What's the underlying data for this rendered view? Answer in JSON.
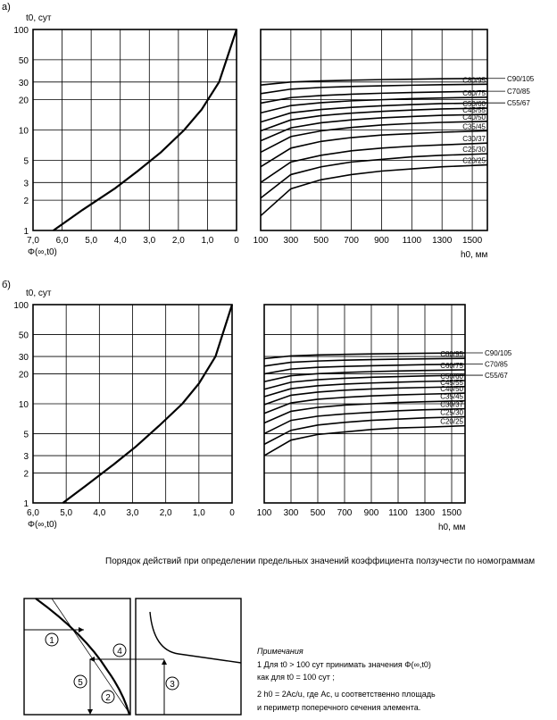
{
  "figure": {
    "panel_a_label": "а)",
    "panel_b_label": "б)"
  },
  "chart_data": [
    {
      "id": "a_left",
      "type": "line",
      "panel": "а)",
      "ylabel": "t0, сут",
      "xlabel": "Φ(∞,t0)",
      "y_scale": "log",
      "y_ticks": [
        "1",
        "2",
        "3",
        "5",
        "10",
        "20",
        "30",
        "50",
        "100"
      ],
      "x_ticks": [
        "7,0",
        "6,0",
        "5,0",
        "4,0",
        "3,0",
        "2,0",
        "1,0",
        "0"
      ],
      "x_range": [
        7.0,
        0
      ],
      "y_range": [
        1,
        100
      ],
      "grid": true,
      "series": [
        {
          "x": [
            6.3,
            5.3,
            4.2,
            3.4,
            2.6,
            1.8,
            1.2,
            0.6,
            0
          ],
          "y": [
            1,
            1.6,
            2.6,
            3.9,
            6.0,
            10,
            16,
            30,
            100
          ]
        }
      ]
    },
    {
      "id": "a_right",
      "type": "line",
      "panel": "а)",
      "xlabel": "h0, мм",
      "y_scale": "log",
      "x_ticks": [
        "100",
        "300",
        "500",
        "700",
        "900",
        "1100",
        "1300",
        "1500"
      ],
      "x_range": [
        100,
        1600
      ],
      "y_range": [
        1,
        100
      ],
      "grid": true,
      "x": [
        100,
        300,
        500,
        700,
        900,
        1100,
        1300,
        1600
      ],
      "series": [
        {
          "name": "C20/25",
          "y": [
            1.4,
            2.6,
            3.2,
            3.6,
            3.9,
            4.1,
            4.3,
            4.5
          ]
        },
        {
          "name": "C25/30",
          "y": [
            2.1,
            3.6,
            4.3,
            4.8,
            5.1,
            5.4,
            5.6,
            5.8
          ]
        },
        {
          "name": "C30/37",
          "y": [
            3.0,
            4.8,
            5.6,
            6.2,
            6.6,
            6.9,
            7.1,
            7.4
          ]
        },
        {
          "name": "C35/45",
          "y": [
            4.3,
            6.6,
            7.7,
            8.4,
            8.9,
            9.2,
            9.5,
            9.8
          ]
        },
        {
          "name": "C40/50",
          "y": [
            6.0,
            8.6,
            9.8,
            10.6,
            11.2,
            11.6,
            11.9,
            12.2
          ]
        },
        {
          "name": "C45/55",
          "y": [
            7.8,
            10.5,
            11.8,
            12.6,
            13.2,
            13.6,
            14,
            14.3
          ]
        },
        {
          "name": "C50/60",
          "y": [
            9.8,
            12.6,
            13.9,
            14.7,
            15.3,
            15.8,
            16.2,
            16.5
          ]
        },
        {
          "name": "C55/67",
          "y": [
            12,
            14.8,
            16,
            16.8,
            17.4,
            17.9,
            18.3,
            18.6
          ]
        },
        {
          "name": "C60/75",
          "y": [
            14.8,
            17.5,
            18.7,
            19.5,
            20,
            20.5,
            20.8,
            21.2
          ]
        },
        {
          "name": "C70/85",
          "y": [
            18.5,
            21,
            22,
            22.7,
            23.2,
            23.6,
            23.9,
            24.3
          ]
        },
        {
          "name": "C80/95",
          "y": [
            23,
            25.5,
            26.5,
            27.1,
            27.5,
            27.9,
            28.2,
            28.5
          ]
        },
        {
          "name": "C90/105",
          "y": [
            28,
            30,
            30.8,
            31.3,
            31.7,
            32,
            32.3,
            32.6
          ]
        }
      ]
    },
    {
      "id": "b_left",
      "type": "line",
      "panel": "б)",
      "ylabel": "t0, сут",
      "xlabel": "Φ(∞,t0)",
      "y_scale": "log",
      "y_ticks": [
        "1",
        "2",
        "3",
        "5",
        "10",
        "20",
        "30",
        "50",
        "100"
      ],
      "x_ticks": [
        "6,0",
        "5,0",
        "4,0",
        "3,0",
        "2,0",
        "1,0",
        "0"
      ],
      "x_range": [
        6.0,
        0
      ],
      "y_range": [
        1,
        100
      ],
      "grid": true,
      "series": [
        {
          "x": [
            5.1,
            4.4,
            3.6,
            2.9,
            2.2,
            1.5,
            1.0,
            0.5,
            0
          ],
          "y": [
            1,
            1.5,
            2.4,
            3.7,
            6.0,
            10,
            16,
            30,
            100
          ]
        }
      ]
    },
    {
      "id": "b_right",
      "type": "line",
      "panel": "б)",
      "xlabel": "h0, мм",
      "y_scale": "log",
      "x_ticks": [
        "100",
        "300",
        "500",
        "700",
        "900",
        "1100",
        "1300",
        "1500"
      ],
      "x_range": [
        100,
        1600
      ],
      "y_range": [
        1,
        100
      ],
      "grid": true,
      "x": [
        100,
        300,
        500,
        700,
        900,
        1100,
        1300,
        1600
      ],
      "series": [
        {
          "name": "C20/25",
          "y": [
            3.0,
            4.3,
            4.9,
            5.2,
            5.5,
            5.7,
            5.8,
            6.0
          ]
        },
        {
          "name": "C25/30",
          "y": [
            3.9,
            5.4,
            6.1,
            6.5,
            6.8,
            7.0,
            7.2,
            7.4
          ]
        },
        {
          "name": "C30/37",
          "y": [
            5.0,
            6.8,
            7.5,
            7.9,
            8.2,
            8.5,
            8.7,
            8.9
          ]
        },
        {
          "name": "C35/45",
          "y": [
            6.4,
            8.4,
            9.2,
            9.7,
            10,
            10.3,
            10.5,
            10.7
          ]
        },
        {
          "name": "C40/50",
          "y": [
            8.0,
            10.2,
            11.1,
            11.6,
            12,
            12.3,
            12.5,
            12.8
          ]
        },
        {
          "name": "C45/55",
          "y": [
            9.8,
            12.2,
            13.1,
            13.7,
            14.1,
            14.4,
            14.6,
            14.9
          ]
        },
        {
          "name": "C50/60",
          "y": [
            11.8,
            14.2,
            15.2,
            15.8,
            16.2,
            16.5,
            16.8,
            17.1
          ]
        },
        {
          "name": "C55/67",
          "y": [
            14,
            16.5,
            17.5,
            18.1,
            18.5,
            18.8,
            19.1,
            19.4
          ]
        },
        {
          "name": "C60/75",
          "y": [
            16.7,
            19.2,
            20.1,
            20.7,
            21.1,
            21.4,
            21.7,
            22
          ]
        },
        {
          "name": "C70/85",
          "y": [
            20,
            22.4,
            23.3,
            23.8,
            24.2,
            24.5,
            24.8,
            25.1
          ]
        },
        {
          "name": "C80/95",
          "y": [
            24,
            26.2,
            27,
            27.5,
            27.9,
            28.2,
            28.4,
            28.7
          ]
        },
        {
          "name": "C90/105",
          "y": [
            28.5,
            30.4,
            31.1,
            31.5,
            31.8,
            32.1,
            32.3,
            32.6
          ]
        }
      ]
    }
  ],
  "procedure": {
    "caption": "Порядок действий при определении предельных значений коэффициента ползучести по номограммам",
    "steps": [
      "1",
      "2",
      "3",
      "4",
      "5"
    ]
  },
  "notes": {
    "title": "Примечания",
    "line1": "1  Для  t0 > 100 сут принимать значения  Φ(∞,t0)",
    "line2": "как для  t0 = 100 сут ;",
    "line3": "2  h0 = 2Ac/u, где  Ac, u  соответственно площадь",
    "line4": "и периметр поперечного сечения элемента."
  }
}
